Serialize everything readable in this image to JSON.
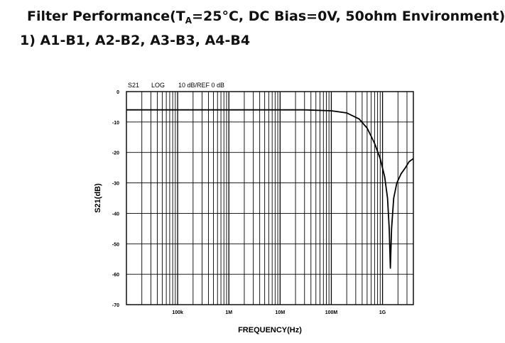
{
  "title": {
    "prefix": "Filter Performance(T",
    "subscript": "A",
    "suffix": "=25°C, DC Bias=0V, 50ohm Environment)"
  },
  "subtitle": "1) A1-B1, A2-B2, A3-B3, A4-B4",
  "chart_data": {
    "type": "line",
    "header": {
      "trace": "S21",
      "format": "LOG",
      "scale": "10 dB/REF 0 dB"
    },
    "xlabel": "FREQUENCY(Hz)",
    "ylabel": "S21(dB)",
    "xscale": "log",
    "xlim_hz": [
      10000,
      4000000000
    ],
    "ylim": [
      -70,
      0
    ],
    "x_ticks": [
      {
        "value": 100000,
        "label": "100k"
      },
      {
        "value": 1000000,
        "label": "1M"
      },
      {
        "value": 10000000,
        "label": "10M"
      },
      {
        "value": 100000000,
        "label": "100M"
      },
      {
        "value": 1000000000,
        "label": "1G"
      }
    ],
    "y_ticks": [
      {
        "value": 0,
        "label": "0"
      },
      {
        "value": -10,
        "label": "-10"
      },
      {
        "value": -20,
        "label": "-20"
      },
      {
        "value": -30,
        "label": "-30"
      },
      {
        "value": -40,
        "label": "-40"
      },
      {
        "value": -50,
        "label": "-50"
      },
      {
        "value": -60,
        "label": "-60"
      },
      {
        "value": -70,
        "label": "-70"
      }
    ],
    "grid": true,
    "series": [
      {
        "color": "#000000",
        "points": [
          {
            "x": 10000,
            "y": -6.0
          },
          {
            "x": 1000000,
            "y": -6.0
          },
          {
            "x": 30000000,
            "y": -6.0
          },
          {
            "x": 100000000,
            "y": -6.3
          },
          {
            "x": 200000000,
            "y": -7.0
          },
          {
            "x": 350000000,
            "y": -9.0
          },
          {
            "x": 500000000,
            "y": -12.0
          },
          {
            "x": 700000000,
            "y": -17.0
          },
          {
            "x": 900000000,
            "y": -22.0
          },
          {
            "x": 1100000000,
            "y": -28.0
          },
          {
            "x": 1250000000,
            "y": -35.0
          },
          {
            "x": 1350000000,
            "y": -45.0
          },
          {
            "x": 1420000000,
            "y": -58.0
          },
          {
            "x": 1500000000,
            "y": -45.0
          },
          {
            "x": 1650000000,
            "y": -35.0
          },
          {
            "x": 1900000000,
            "y": -30.0
          },
          {
            "x": 2300000000,
            "y": -27.0
          },
          {
            "x": 2800000000,
            "y": -25.0
          },
          {
            "x": 3300000000,
            "y": -23.0
          },
          {
            "x": 4000000000,
            "y": -22.0
          }
        ]
      }
    ]
  }
}
